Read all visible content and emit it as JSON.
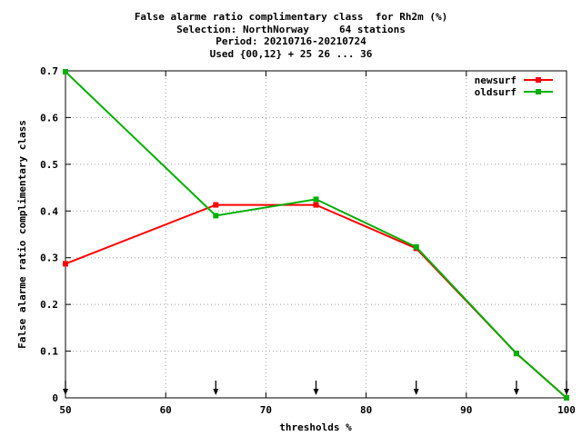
{
  "chart_data": {
    "type": "line",
    "title_lines": [
      "False alarme ratio complimentary class  for Rh2m (%)",
      "Selection: NorthNorway     64 stations",
      "Period: 20210716-20210724",
      "Used {00,12} + 25 26 ... 36"
    ],
    "xlabel": "thresholds %",
    "ylabel": "False alarme ratio complimentary class",
    "xlim": [
      50,
      100
    ],
    "ylim": [
      0,
      0.7
    ],
    "xticks": [
      50,
      60,
      70,
      80,
      90,
      100
    ],
    "yticks": [
      0,
      0.1,
      0.2,
      0.3,
      0.4,
      0.5,
      0.6,
      0.7
    ],
    "arrow_markers_x": [
      50,
      65,
      75,
      85,
      95,
      100
    ],
    "legend_position": "top-right",
    "series": [
      {
        "name": "newsurf",
        "color": "#ff0000",
        "x": [
          50,
          65,
          75,
          85,
          95,
          100
        ],
        "y": [
          0.287,
          0.413,
          0.413,
          0.32,
          0.095,
          0.0
        ]
      },
      {
        "name": "oldsurf",
        "color": "#00b000",
        "x": [
          50,
          65,
          75,
          85,
          95,
          100
        ],
        "y": [
          0.698,
          0.39,
          0.425,
          0.323,
          0.095,
          0.0
        ]
      }
    ]
  }
}
